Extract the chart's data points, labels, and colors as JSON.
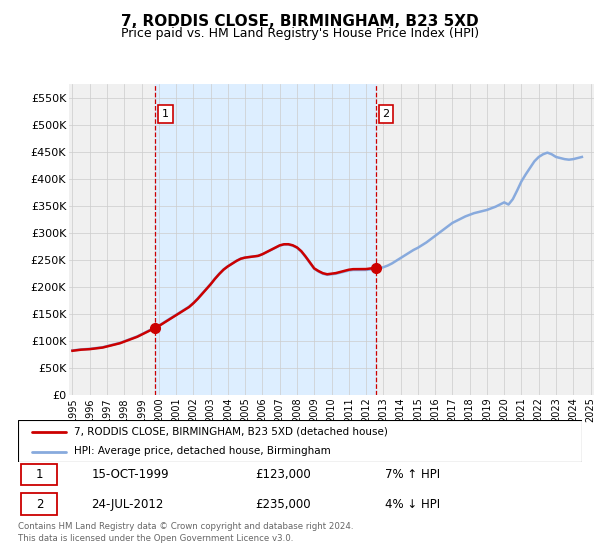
{
  "title": "7, RODDIS CLOSE, BIRMINGHAM, B23 5XD",
  "subtitle": "Price paid vs. HM Land Registry's House Price Index (HPI)",
  "title_fontsize": 11,
  "subtitle_fontsize": 9,
  "ylabel_ticks": [
    "£0",
    "£50K",
    "£100K",
    "£150K",
    "£200K",
    "£250K",
    "£300K",
    "£350K",
    "£400K",
    "£450K",
    "£500K",
    "£550K"
  ],
  "ytick_values": [
    0,
    50000,
    100000,
    150000,
    200000,
    250000,
    300000,
    350000,
    400000,
    450000,
    500000,
    550000
  ],
  "ylim": [
    0,
    575000
  ],
  "xlim_start": 1994.8,
  "xlim_end": 2025.2,
  "xtick_years": [
    1995,
    1996,
    1997,
    1998,
    1999,
    2000,
    2001,
    2002,
    2003,
    2004,
    2005,
    2006,
    2007,
    2008,
    2009,
    2010,
    2011,
    2012,
    2013,
    2014,
    2015,
    2016,
    2017,
    2018,
    2019,
    2020,
    2021,
    2022,
    2023,
    2024,
    2025
  ],
  "hpi_x": [
    1995.0,
    1995.25,
    1995.5,
    1995.75,
    1996.0,
    1996.25,
    1996.5,
    1996.75,
    1997.0,
    1997.25,
    1997.5,
    1997.75,
    1998.0,
    1998.25,
    1998.5,
    1998.75,
    1999.0,
    1999.25,
    1999.5,
    1999.75,
    2000.0,
    2000.25,
    2000.5,
    2000.75,
    2001.0,
    2001.25,
    2001.5,
    2001.75,
    2002.0,
    2002.25,
    2002.5,
    2002.75,
    2003.0,
    2003.25,
    2003.5,
    2003.75,
    2004.0,
    2004.25,
    2004.5,
    2004.75,
    2005.0,
    2005.25,
    2005.5,
    2005.75,
    2006.0,
    2006.25,
    2006.5,
    2006.75,
    2007.0,
    2007.25,
    2007.5,
    2007.75,
    2008.0,
    2008.25,
    2008.5,
    2008.75,
    2009.0,
    2009.25,
    2009.5,
    2009.75,
    2010.0,
    2010.25,
    2010.5,
    2010.75,
    2011.0,
    2011.25,
    2011.5,
    2011.75,
    2012.0,
    2012.25,
    2012.5,
    2012.75,
    2013.0,
    2013.25,
    2013.5,
    2013.75,
    2014.0,
    2014.25,
    2014.5,
    2014.75,
    2015.0,
    2015.25,
    2015.5,
    2015.75,
    2016.0,
    2016.25,
    2016.5,
    2016.75,
    2017.0,
    2017.25,
    2017.5,
    2017.75,
    2018.0,
    2018.25,
    2018.5,
    2018.75,
    2019.0,
    2019.25,
    2019.5,
    2019.75,
    2020.0,
    2020.25,
    2020.5,
    2020.75,
    2021.0,
    2021.25,
    2021.5,
    2021.75,
    2022.0,
    2022.25,
    2022.5,
    2022.75,
    2023.0,
    2023.25,
    2023.5,
    2023.75,
    2024.0,
    2024.25,
    2024.5
  ],
  "hpi_y": [
    82000,
    83000,
    84000,
    84500,
    85000,
    86000,
    87000,
    88000,
    90000,
    92000,
    94000,
    96000,
    99000,
    102000,
    105000,
    108000,
    112000,
    116000,
    120000,
    123000,
    128000,
    133000,
    138000,
    143000,
    148000,
    153000,
    158000,
    163000,
    170000,
    178000,
    187000,
    196000,
    205000,
    215000,
    224000,
    232000,
    238000,
    243000,
    248000,
    252000,
    254000,
    255000,
    256000,
    257000,
    260000,
    264000,
    268000,
    272000,
    276000,
    278000,
    278000,
    276000,
    272000,
    265000,
    255000,
    244000,
    233000,
    228000,
    224000,
    222000,
    223000,
    224000,
    226000,
    228000,
    230000,
    231000,
    231000,
    231000,
    231000,
    232000,
    233000,
    234000,
    236000,
    239000,
    243000,
    248000,
    253000,
    258000,
    263000,
    268000,
    272000,
    277000,
    282000,
    288000,
    294000,
    300000,
    306000,
    312000,
    318000,
    322000,
    326000,
    330000,
    333000,
    336000,
    338000,
    340000,
    342000,
    345000,
    348000,
    352000,
    356000,
    352000,
    362000,
    378000,
    395000,
    408000,
    420000,
    432000,
    440000,
    445000,
    448000,
    445000,
    440000,
    438000,
    436000,
    435000,
    436000,
    438000,
    440000
  ],
  "sale1_x": 1999.79,
  "sale1_y": 123000,
  "sale1_label": "1",
  "sale2_x": 2012.55,
  "sale2_y": 235000,
  "sale2_label": "2",
  "sale_color": "#cc0000",
  "hpi_line_color": "#88aadd",
  "property_line_color": "#cc0000",
  "grid_color": "#cccccc",
  "bg_color": "#f0f0f0",
  "shade_color": "#ddeeff",
  "legend_line1": "7, RODDIS CLOSE, BIRMINGHAM, B23 5XD (detached house)",
  "legend_line2": "HPI: Average price, detached house, Birmingham",
  "annotation1_date": "15-OCT-1999",
  "annotation1_price": "£123,000",
  "annotation1_hpi": "7% ↑ HPI",
  "annotation2_date": "24-JUL-2012",
  "annotation2_price": "£235,000",
  "annotation2_hpi": "4% ↓ HPI",
  "footnote": "Contains HM Land Registry data © Crown copyright and database right 2024.\nThis data is licensed under the Open Government Licence v3.0.",
  "vline_color": "#cc0000",
  "footnote_color": "#666666"
}
